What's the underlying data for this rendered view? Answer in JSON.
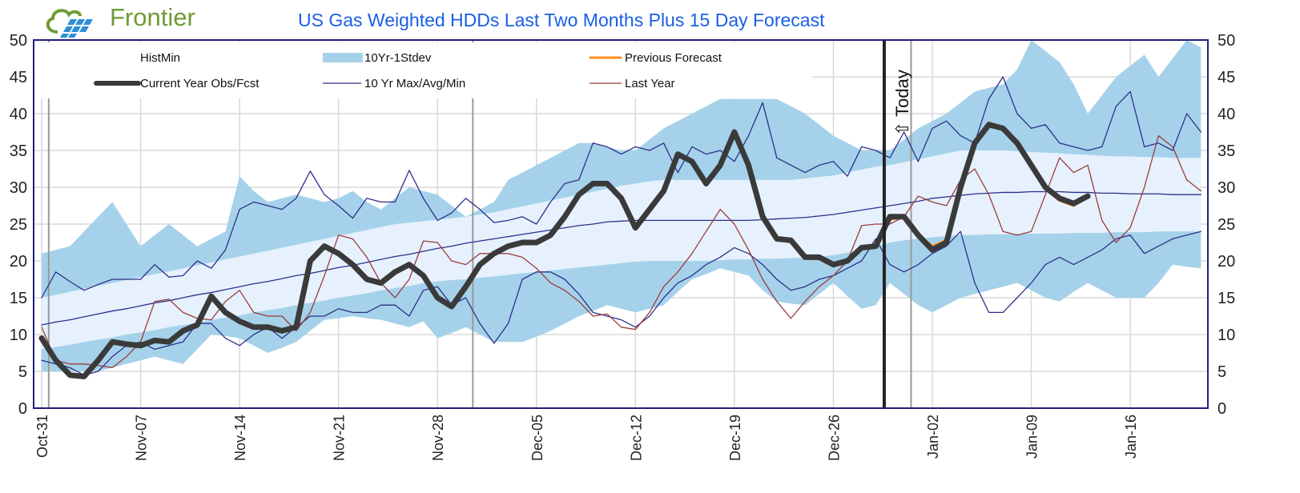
{
  "logo": {
    "text": "Frontier"
  },
  "chart_data": {
    "type": "line",
    "title": "US Gas Weighted HDDs Last Two Months Plus 15 Day Forecast",
    "xlabel": "",
    "ylabel": "",
    "ylim": [
      0,
      50
    ],
    "yticks": [
      0,
      5,
      10,
      15,
      20,
      25,
      30,
      35,
      40,
      45,
      50
    ],
    "right_axis": true,
    "grid": true,
    "legend_position": "top",
    "xtick_labels": [
      "Oct-31",
      "Nov-07",
      "Nov-14",
      "Nov-21",
      "Nov-28",
      "Dec-05",
      "Dec-12",
      "Dec-19",
      "Dec-26",
      "Jan-02",
      "Jan-09",
      "Jan-16"
    ],
    "month_separators": [
      "Nov-01",
      "Dec-01",
      "Jan-01"
    ],
    "today": {
      "date": "Dec-29",
      "label": "Today",
      "arrow": "⇧"
    },
    "colors": {
      "current": "#3a3a3a",
      "previous": "#ff8c1a",
      "tenyr": "#2e2f8a",
      "last_year": "#9b3b3b",
      "stdev_band": "#a5d2ea",
      "inner_band": "#e6f1fd",
      "title": "#1a5fe6",
      "logo": "#6e9c36"
    },
    "x": [
      "Oct-31",
      "Nov-01",
      "Nov-02",
      "Nov-03",
      "Nov-04",
      "Nov-05",
      "Nov-06",
      "Nov-07",
      "Nov-08",
      "Nov-09",
      "Nov-10",
      "Nov-11",
      "Nov-12",
      "Nov-13",
      "Nov-14",
      "Nov-15",
      "Nov-16",
      "Nov-17",
      "Nov-18",
      "Nov-19",
      "Nov-20",
      "Nov-21",
      "Nov-22",
      "Nov-23",
      "Nov-24",
      "Nov-25",
      "Nov-26",
      "Nov-27",
      "Nov-28",
      "Nov-29",
      "Nov-30",
      "Dec-01",
      "Dec-02",
      "Dec-03",
      "Dec-04",
      "Dec-05",
      "Dec-06",
      "Dec-07",
      "Dec-08",
      "Dec-09",
      "Dec-10",
      "Dec-11",
      "Dec-12",
      "Dec-13",
      "Dec-14",
      "Dec-15",
      "Dec-16",
      "Dec-17",
      "Dec-18",
      "Dec-19",
      "Dec-20",
      "Dec-21",
      "Dec-22",
      "Dec-23",
      "Dec-24",
      "Dec-25",
      "Dec-26",
      "Dec-27",
      "Dec-28",
      "Dec-29",
      "Dec-30",
      "Dec-31",
      "Jan-01",
      "Jan-02",
      "Jan-03",
      "Jan-04",
      "Jan-05",
      "Jan-06",
      "Jan-07",
      "Jan-08",
      "Jan-09",
      "Jan-10",
      "Jan-11",
      "Jan-12",
      "Jan-13",
      "Jan-14",
      "Jan-15",
      "Jan-16",
      "Jan-17",
      "Jan-18",
      "Jan-19",
      "Jan-20",
      "Jan-21"
    ],
    "legend": [
      {
        "key": "histmin",
        "name": "HistMin"
      },
      {
        "key": "stdev",
        "name": "10Yr-1Stdev"
      },
      {
        "key": "previous",
        "name": "Previous Forecast"
      },
      {
        "key": "current",
        "name": "Current Year Obs/Fcst"
      },
      {
        "key": "tenyr",
        "name": "10 Yr Max/Avg/Min"
      },
      {
        "key": "last_year",
        "name": "Last Year"
      }
    ],
    "series": {
      "envelope_upper": [
        21,
        21.5,
        22,
        24,
        26,
        28,
        25,
        22,
        23.5,
        25,
        23.5,
        22,
        23,
        24,
        31.5,
        29.5,
        28,
        28.5,
        29,
        28.5,
        28,
        28.5,
        29.5,
        28,
        27,
        28.5,
        30,
        29.5,
        29,
        27.5,
        26,
        27,
        28,
        31,
        32,
        33,
        34,
        35,
        36,
        36,
        35.5,
        35,
        35,
        36.5,
        38,
        39,
        40,
        41,
        42,
        42,
        42,
        42,
        42,
        41,
        40,
        38.5,
        37,
        36,
        35,
        35,
        35,
        36.5,
        38,
        39,
        40,
        41.5,
        43,
        43.5,
        44,
        46,
        50,
        48.5,
        47,
        44,
        40,
        42.5,
        45,
        46.5,
        48,
        45,
        47.5,
        50,
        49
      ],
      "stdev_upper": [
        15,
        15.4,
        15.8,
        16.2,
        16.6,
        17,
        17.4,
        17.8,
        18.2,
        18.6,
        19,
        19.4,
        19.8,
        20.2,
        20.6,
        21,
        21.4,
        21.8,
        22.2,
        22.6,
        23,
        23.4,
        23.8,
        24.2,
        24.6,
        25,
        25.2,
        25.4,
        25.6,
        25.8,
        26,
        26.3,
        26.6,
        27,
        27.4,
        27.8,
        28.2,
        28.6,
        29,
        29.4,
        29.8,
        30.2,
        30.5,
        30.8,
        31,
        31,
        31,
        31,
        31,
        31,
        31,
        31,
        31,
        31,
        31.2,
        31.4,
        31.6,
        32,
        32.4,
        32.8,
        33,
        33.4,
        33.8,
        34.2,
        34.6,
        35,
        35,
        35,
        35,
        34.9,
        34.8,
        34.7,
        34.6,
        34.5,
        34.4,
        34.3,
        34.2,
        34.2,
        34.1,
        34.1,
        34,
        34,
        34
      ],
      "stdev_lower": [
        8,
        8.3,
        8.6,
        9,
        9.3,
        9.6,
        10,
        10.3,
        10.6,
        11,
        11.3,
        11.6,
        12,
        12.3,
        12.6,
        13,
        13.3,
        13.6,
        14,
        14.3,
        14.6,
        15,
        15.3,
        15.6,
        16,
        16.3,
        16.6,
        17,
        17.2,
        17.4,
        17.5,
        17.7,
        17.9,
        18.1,
        18.3,
        18.5,
        18.7,
        18.9,
        19.1,
        19.3,
        19.5,
        19.7,
        19.9,
        20,
        20,
        20,
        20,
        20,
        20.1,
        20.2,
        20.2,
        20.3,
        20.3,
        20.4,
        20.4,
        20.5,
        20.8,
        21.1,
        21.5,
        22,
        22.5,
        22.8,
        23,
        23.2,
        23.4,
        23.5,
        23.5,
        23.6,
        23.6,
        23.7,
        23.7,
        23.7,
        23.7,
        23.8,
        23.8,
        23.8,
        23.9,
        23.9,
        23.9,
        24,
        24,
        24,
        24
      ],
      "envelope_lower": [
        5,
        5,
        5,
        5,
        5,
        5.5,
        6,
        6.5,
        7,
        6.5,
        6,
        8,
        10,
        9.8,
        9.5,
        8.5,
        7.5,
        8.2,
        9,
        10.5,
        12,
        12.2,
        12.5,
        12.2,
        12,
        11.5,
        11,
        11.8,
        9.5,
        10.2,
        11,
        10,
        9,
        9,
        9,
        9.7,
        10.5,
        11.5,
        12.5,
        13.2,
        14,
        13.5,
        13,
        13.5,
        14,
        15.8,
        17.5,
        18.2,
        19,
        18.5,
        18,
        16,
        14.5,
        14.2,
        14,
        15.5,
        17,
        15.2,
        13.5,
        14,
        17,
        15.5,
        14,
        13,
        14,
        15,
        15.5,
        16,
        16.5,
        17,
        16,
        15,
        14.5,
        15.8,
        17,
        16,
        15,
        15,
        15,
        17,
        19.5,
        19.2,
        19
      ],
      "tenyr_max": [
        15,
        18.5,
        17.2,
        16,
        16.8,
        17.5,
        17.5,
        17.5,
        19.5,
        17.8,
        18,
        20,
        19,
        21.5,
        27,
        28,
        27.5,
        27,
        28.5,
        32.2,
        29,
        27.5,
        25.8,
        28.5,
        28,
        28,
        32.3,
        28.5,
        25.5,
        26.5,
        28.5,
        27,
        25.2,
        25.5,
        26,
        25,
        28,
        30.5,
        31,
        36,
        35.5,
        34.5,
        35.5,
        35,
        36,
        32,
        35.5,
        34.5,
        35,
        33.5,
        37,
        41.5,
        34,
        33,
        32,
        33,
        33.5,
        31.5,
        35.5,
        35,
        34,
        37.5,
        33.5,
        38,
        39,
        37,
        36,
        42,
        45,
        40,
        38,
        38.5,
        36,
        35.5,
        35,
        35.5,
        41,
        43,
        35.5,
        36,
        35,
        40,
        37.5
      ],
      "tenyr_avg": [
        11.3,
        11.7,
        12,
        12.4,
        12.8,
        13.2,
        13.5,
        13.9,
        14.3,
        14.6,
        15,
        15.4,
        15.7,
        16.1,
        16.5,
        16.9,
        17.2,
        17.6,
        18,
        18.3,
        18.7,
        19.1,
        19.4,
        19.8,
        20.2,
        20.6,
        20.9,
        21.3,
        21.7,
        22,
        22.4,
        22.7,
        23,
        23.3,
        23.6,
        23.9,
        24.2,
        24.5,
        24.8,
        25,
        25.3,
        25.4,
        25.5,
        25.5,
        25.5,
        25.5,
        25.5,
        25.5,
        25.5,
        25.5,
        25.5,
        25.6,
        25.7,
        25.8,
        25.9,
        26.1,
        26.3,
        26.6,
        26.9,
        27.2,
        27.5,
        27.8,
        28.1,
        28.5,
        28.7,
        28.9,
        29.1,
        29.2,
        29.3,
        29.3,
        29.4,
        29.4,
        29.4,
        29.3,
        29.3,
        29.2,
        29.2,
        29.1,
        29.1,
        29.1,
        29,
        29,
        29
      ],
      "tenyr_min": [
        6.5,
        6,
        5.5,
        4.5,
        5,
        7,
        8.5,
        9,
        8,
        8.5,
        9,
        11.5,
        11.5,
        9.5,
        8.5,
        10,
        11,
        9.5,
        11,
        12.5,
        12.5,
        13.5,
        13,
        13,
        14,
        14,
        12.5,
        16,
        16.5,
        14,
        15,
        11.5,
        8.8,
        11.5,
        17.5,
        18.5,
        18.5,
        17.5,
        15.5,
        13,
        12.5,
        12,
        11,
        12.5,
        15,
        17,
        18,
        19.5,
        20.5,
        21.8,
        21,
        19.5,
        17.5,
        16,
        16.5,
        17.5,
        18,
        19,
        20,
        23,
        19.5,
        18.5,
        19.5,
        21,
        22,
        24,
        17,
        13,
        13,
        15,
        17,
        19.5,
        20.5,
        19.5,
        20.5,
        21.5,
        23,
        23.5,
        21,
        22,
        23,
        23.5,
        24
      ],
      "last_year": [
        11,
        6.5,
        6,
        6,
        5.8,
        5.5,
        7,
        9,
        14.5,
        14.8,
        13,
        12.2,
        12,
        14.5,
        16,
        13,
        12.5,
        12.5,
        10.5,
        13,
        18,
        23.5,
        23,
        20.5,
        17,
        15,
        17.5,
        22.7,
        22.5,
        20,
        19.5,
        21,
        21,
        21,
        20.5,
        19,
        17,
        16,
        14.5,
        12.5,
        12.8,
        11,
        10.7,
        13,
        16.5,
        18.5,
        21,
        24,
        27,
        25,
        21.5,
        17.5,
        14.5,
        12.2,
        14.5,
        16.5,
        18,
        20,
        24.8,
        25,
        25,
        26,
        28.8,
        28,
        27.5,
        31,
        32.5,
        29,
        24,
        23.5,
        24,
        29,
        34,
        32,
        33,
        25.5,
        22.5,
        24.5,
        30,
        37,
        35.5,
        31,
        29.5
      ],
      "current": [
        9.5,
        6.5,
        4.5,
        4.3,
        6.5,
        9,
        8.7,
        8.5,
        9.2,
        9,
        10.5,
        11.3,
        15.2,
        13,
        11.8,
        11,
        11,
        10.5,
        11,
        20,
        22,
        21,
        19.5,
        17.5,
        17,
        18.5,
        19.5,
        18,
        15,
        13.8,
        16.5,
        19.5,
        21,
        22,
        22.5,
        22.5,
        23.5,
        26,
        29,
        30.5,
        30.5,
        28.5,
        24.5,
        27,
        29.5,
        34.5,
        33.5,
        30.5,
        33,
        37.5,
        33,
        26,
        23,
        22.8,
        20.5,
        20.5,
        19.5,
        20,
        21.8,
        22,
        26,
        26,
        23.5,
        21.5,
        22.5,
        30,
        36,
        38.5,
        38,
        36,
        33,
        30,
        28.5,
        27.8,
        28.8
      ],
      "previous_start": "Dec-29",
      "previous": [
        22.3,
        25.6,
        26,
        23.6,
        22,
        22.8,
        29.5,
        36.3,
        38.8,
        38,
        35.8,
        32.8,
        29.8,
        28.2,
        27.5,
        28.7
      ]
    }
  }
}
